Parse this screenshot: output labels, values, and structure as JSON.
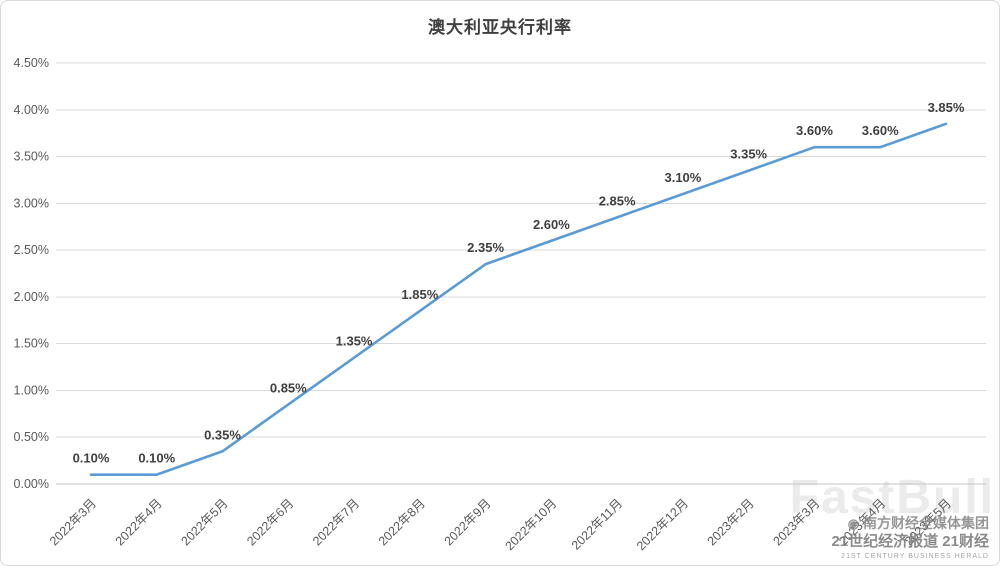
{
  "chart_data": {
    "type": "line",
    "title": "澳大利亚央行利率",
    "categories": [
      "2022年3月",
      "2022年4月",
      "2022年5月",
      "2022年6月",
      "2022年7月",
      "2022年8月",
      "2022年9月",
      "2022年10月",
      "2022年11月",
      "2022年12月",
      "2023年2月",
      "2023年3月",
      "2023年4月",
      "2023年5月"
    ],
    "values": [
      0.1,
      0.1,
      0.35,
      0.85,
      1.35,
      1.85,
      2.35,
      2.6,
      2.85,
      3.1,
      3.35,
      3.6,
      3.6,
      3.85
    ],
    "data_labels": [
      "0.10%",
      "0.10%",
      "0.35%",
      "0.85%",
      "1.35%",
      "1.85%",
      "2.35%",
      "2.60%",
      "2.85%",
      "3.10%",
      "3.35%",
      "3.60%",
      "3.60%",
      "3.85%"
    ],
    "y_ticks": [
      "0.00%",
      "0.50%",
      "1.00%",
      "1.50%",
      "2.00%",
      "2.50%",
      "3.00%",
      "3.50%",
      "4.00%",
      "4.50%"
    ],
    "ylim": [
      0,
      4.5
    ],
    "xlabel": "",
    "ylabel": "",
    "grid": true,
    "legend": "none",
    "line_color": "#5b9bd5"
  },
  "watermark": {
    "brand": "FastBull",
    "line1": "南方财经全媒体集团",
    "line2": "21世纪经济报道  21财经",
    "line3": "21ST CENTURY BUSINESS HERALD"
  }
}
